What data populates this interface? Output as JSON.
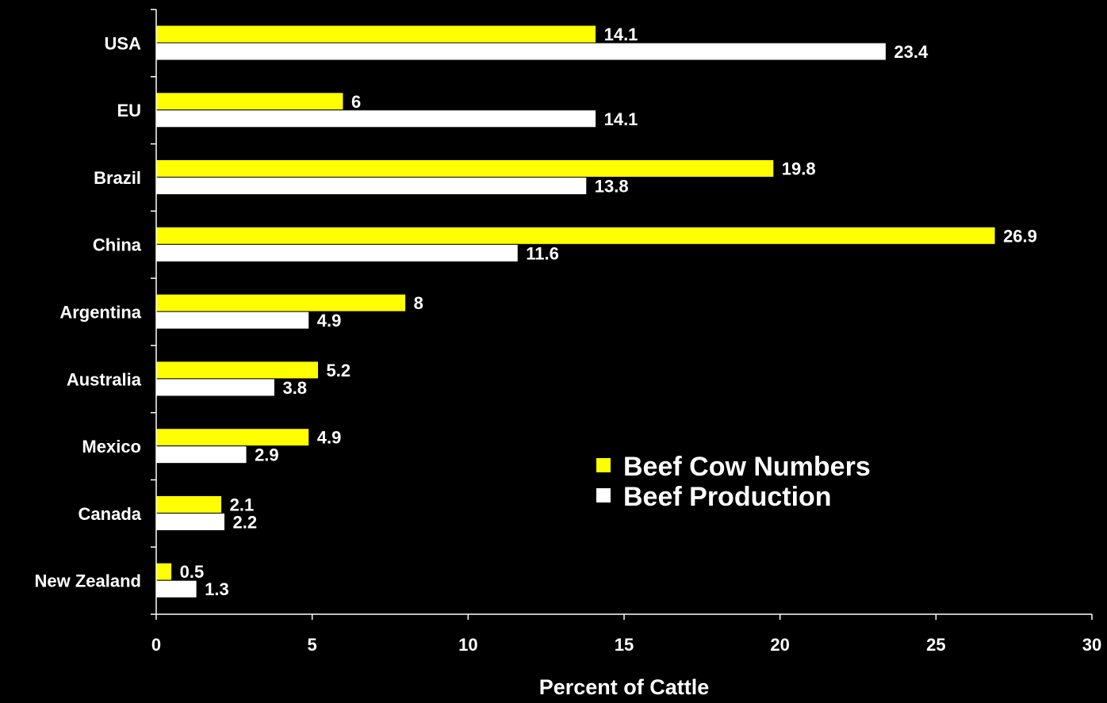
{
  "chart_data": {
    "type": "bar",
    "orientation": "horizontal",
    "title": "",
    "xlabel": "Percent of Cattle",
    "ylabel": "",
    "xlim": [
      0,
      30
    ],
    "x_ticks": [
      "0",
      "5",
      "10",
      "15",
      "20",
      "25",
      "30"
    ],
    "grid": false,
    "legend_position": "center-right",
    "categories": [
      "USA",
      "EU",
      "Brazil",
      "China",
      "Argentina",
      "Australia",
      "Mexico",
      "Canada",
      "New Zealand"
    ],
    "series": [
      {
        "name": "Beef Cow Numbers",
        "color": "#ffff00",
        "values": [
          14.1,
          6,
          19.8,
          26.9,
          8,
          5.2,
          4.9,
          2.1,
          0.5
        ],
        "labels": [
          "14.1",
          "6",
          "19.8",
          "26.9",
          "8",
          "5.2",
          "4.9",
          "2.1",
          "0.5"
        ]
      },
      {
        "name": "Beef Production",
        "color": "#ffffff",
        "values": [
          23.4,
          14.1,
          13.8,
          11.6,
          4.9,
          3.8,
          2.9,
          2.2,
          1.3
        ],
        "labels": [
          "23.4",
          "14.1",
          "13.8",
          "11.6",
          "4.9",
          "3.8",
          "2.9",
          "2.2",
          "1.3"
        ]
      }
    ],
    "background_color": "#000000",
    "axis_color": "#ffffff",
    "text_color": "#ffffff"
  }
}
